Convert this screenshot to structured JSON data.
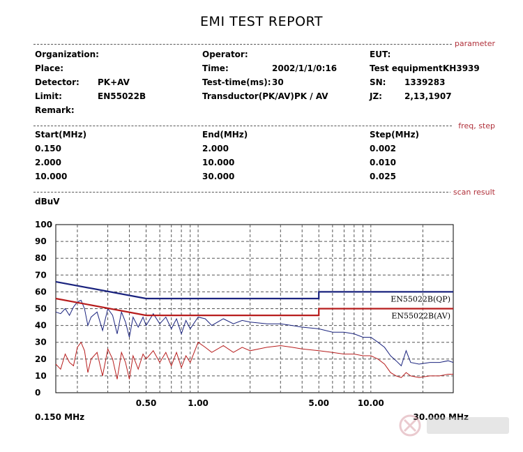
{
  "report": {
    "title": "EMI TEST REPORT"
  },
  "sections": {
    "parameter": "parameter",
    "freq_step": "freq, step",
    "scan_result": "scan result"
  },
  "parameters": {
    "organization_label": "Organization:",
    "organization": "",
    "operator_label": "Operator:",
    "operator": "",
    "eut_label": "EUT:",
    "eut": "",
    "place_label": "Place:",
    "place": "",
    "time_label": "Time:",
    "time": "2002/1/1/0:16",
    "equipment_label": "Test equipment:",
    "equipment": "KH3939",
    "detector_label": "Detector:",
    "detector": "PK+AV",
    "testtime_label": "Test-time(ms):",
    "testtime": "30",
    "sn_label": "SN:",
    "sn": "1339283",
    "limit_label": "Limit:",
    "limit": "EN55022B",
    "transductor_label": "Transductor(PK/AV):",
    "transductor": "PK  /  AV",
    "jz_label": "JZ:",
    "jz": "2,13,1907",
    "remark_label": "Remark:",
    "remark": ""
  },
  "freq_table": {
    "headers": [
      "Start(MHz)",
      "End(MHz)",
      "Step(MHz)"
    ],
    "rows": [
      [
        "0.150",
        "2.000",
        "0.002"
      ],
      [
        "2.000",
        "10.000",
        "0.010"
      ],
      [
        "10.000",
        "30.000",
        "0.025"
      ]
    ]
  },
  "colors": {
    "qp": "#1a237e",
    "av": "#b71c1c",
    "grid_major": "#000000",
    "grid_minor": "#555555"
  },
  "chart_data": {
    "type": "line",
    "ylabel": "dBuV",
    "xscale": "log",
    "xlim": [
      0.15,
      30
    ],
    "ylim": [
      0,
      100
    ],
    "yticks": [
      "100",
      "90",
      "80",
      "70",
      "60",
      "50",
      "40",
      "30",
      "20",
      "10",
      "0"
    ],
    "xtick_labels": [
      {
        "value": 0.5,
        "label": "0.50"
      },
      {
        "value": 1,
        "label": "1.00"
      },
      {
        "value": 5,
        "label": "5.00"
      },
      {
        "value": 10,
        "label": "10.00"
      }
    ],
    "x_start_label": "0.150 MHz",
    "x_end_label": "30.000 MHz",
    "limit_lines": [
      {
        "name": "EN55022B(QP)",
        "points": [
          [
            0.15,
            66
          ],
          [
            0.5,
            56
          ],
          [
            5,
            56
          ],
          [
            5,
            60
          ],
          [
            30,
            60
          ]
        ]
      },
      {
        "name": "EN55022B(AV)",
        "points": [
          [
            0.15,
            56
          ],
          [
            0.5,
            46
          ],
          [
            5,
            46
          ],
          [
            5,
            50
          ],
          [
            30,
            50
          ]
        ]
      }
    ],
    "series": [
      {
        "points": [
          [
            0.15,
            48
          ],
          [
            0.16,
            47
          ],
          [
            0.17,
            50
          ],
          [
            0.18,
            46
          ],
          [
            0.19,
            51
          ],
          [
            0.2,
            54
          ],
          [
            0.21,
            55
          ],
          [
            0.22,
            50
          ],
          [
            0.23,
            40
          ],
          [
            0.24,
            45
          ],
          [
            0.26,
            48
          ],
          [
            0.28,
            37
          ],
          [
            0.3,
            50
          ],
          [
            0.32,
            46
          ],
          [
            0.34,
            35
          ],
          [
            0.36,
            48
          ],
          [
            0.38,
            42
          ],
          [
            0.4,
            33
          ],
          [
            0.42,
            45
          ],
          [
            0.45,
            39
          ],
          [
            0.48,
            45
          ],
          [
            0.5,
            40
          ],
          [
            0.55,
            47
          ],
          [
            0.6,
            41
          ],
          [
            0.65,
            45
          ],
          [
            0.7,
            38
          ],
          [
            0.75,
            44
          ],
          [
            0.8,
            35
          ],
          [
            0.85,
            43
          ],
          [
            0.9,
            38
          ],
          [
            1.0,
            45
          ],
          [
            1.1,
            44
          ],
          [
            1.2,
            40
          ],
          [
            1.4,
            44
          ],
          [
            1.6,
            41
          ],
          [
            1.8,
            43
          ],
          [
            2.0,
            42
          ],
          [
            2.5,
            41
          ],
          [
            3.0,
            41
          ],
          [
            3.5,
            40
          ],
          [
            4.0,
            39
          ],
          [
            5.0,
            38
          ],
          [
            6.0,
            36
          ],
          [
            7.0,
            36
          ],
          [
            8.0,
            35
          ],
          [
            9.0,
            33
          ],
          [
            10.0,
            33
          ],
          [
            11.0,
            30
          ],
          [
            12.0,
            27
          ],
          [
            13.0,
            22
          ],
          [
            14.0,
            19
          ],
          [
            15.0,
            16
          ],
          [
            16.0,
            25
          ],
          [
            17.0,
            18
          ],
          [
            19.0,
            17
          ],
          [
            22.0,
            18
          ],
          [
            25.0,
            18
          ],
          [
            28.0,
            19
          ],
          [
            30.0,
            18
          ]
        ]
      },
      {
        "points": [
          [
            0.15,
            17
          ],
          [
            0.16,
            14
          ],
          [
            0.17,
            23
          ],
          [
            0.18,
            18
          ],
          [
            0.19,
            16
          ],
          [
            0.2,
            27
          ],
          [
            0.21,
            30
          ],
          [
            0.22,
            25
          ],
          [
            0.23,
            12
          ],
          [
            0.24,
            20
          ],
          [
            0.26,
            24
          ],
          [
            0.28,
            10
          ],
          [
            0.3,
            26
          ],
          [
            0.32,
            20
          ],
          [
            0.34,
            8
          ],
          [
            0.36,
            24
          ],
          [
            0.38,
            18
          ],
          [
            0.4,
            8
          ],
          [
            0.42,
            22
          ],
          [
            0.45,
            14
          ],
          [
            0.48,
            23
          ],
          [
            0.5,
            20
          ],
          [
            0.55,
            25
          ],
          [
            0.6,
            18
          ],
          [
            0.65,
            24
          ],
          [
            0.7,
            16
          ],
          [
            0.75,
            24
          ],
          [
            0.8,
            15
          ],
          [
            0.85,
            22
          ],
          [
            0.9,
            18
          ],
          [
            1.0,
            30
          ],
          [
            1.1,
            27
          ],
          [
            1.2,
            24
          ],
          [
            1.4,
            28
          ],
          [
            1.6,
            24
          ],
          [
            1.8,
            27
          ],
          [
            2.0,
            25
          ],
          [
            2.5,
            27
          ],
          [
            3.0,
            28
          ],
          [
            3.5,
            27
          ],
          [
            4.0,
            26
          ],
          [
            5.0,
            25
          ],
          [
            6.0,
            24
          ],
          [
            7.0,
            23
          ],
          [
            8.0,
            23
          ],
          [
            9.0,
            22
          ],
          [
            10.0,
            22
          ],
          [
            11.0,
            20
          ],
          [
            12.0,
            17
          ],
          [
            13.0,
            12
          ],
          [
            14.0,
            10
          ],
          [
            15.0,
            9
          ],
          [
            16.0,
            12
          ],
          [
            17.0,
            10
          ],
          [
            19.0,
            9
          ],
          [
            22.0,
            10
          ],
          [
            25.0,
            10
          ],
          [
            28.0,
            11
          ],
          [
            30.0,
            11
          ]
        ]
      }
    ]
  }
}
